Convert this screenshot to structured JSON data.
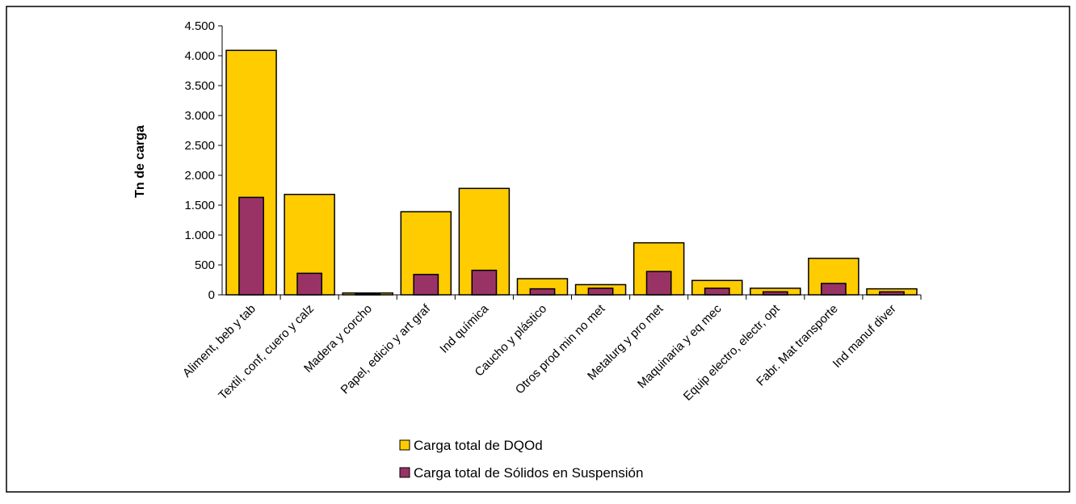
{
  "chart_data": {
    "type": "bar",
    "y_label": "Tn de carga",
    "categories": [
      "Aliment, beb y tab",
      "Textil, conf, cuero y calz",
      "Madera y corcho",
      "Papel, edicio y art graf",
      "Ind química",
      "Caucho y plástico",
      "Otros prod min no met",
      "Metalurg y pro met",
      "Maquinaria y eq mec",
      "Equip electro, electr, opt",
      "Fabr. Mat transporte",
      "Ind manuf diver"
    ],
    "series": [
      {
        "name": "Carga total de DQOd",
        "color": "#ffcc00",
        "values": [
          4090,
          1680,
          30,
          1390,
          1780,
          270,
          170,
          870,
          240,
          110,
          610,
          100
        ]
      },
      {
        "name": "Carga total de Sólidos en Suspensión",
        "color": "#993366",
        "values": [
          1630,
          360,
          10,
          340,
          410,
          100,
          110,
          390,
          110,
          50,
          190,
          50
        ]
      }
    ],
    "ylim": [
      0,
      4500
    ],
    "yticks": [
      0,
      500,
      {
        "value": 1000,
        "label": "1.000"
      },
      {
        "value": 1500,
        "label": "1.500"
      },
      {
        "value": 2000,
        "label": "2.000"
      },
      {
        "value": 2500,
        "label": "2.500"
      },
      {
        "value": 3000,
        "label": "3.000"
      },
      {
        "value": 3500,
        "label": "3.500"
      },
      {
        "value": 4000,
        "label": "4.000"
      },
      {
        "value": 4500,
        "label": "4.500"
      }
    ],
    "grid": false
  }
}
